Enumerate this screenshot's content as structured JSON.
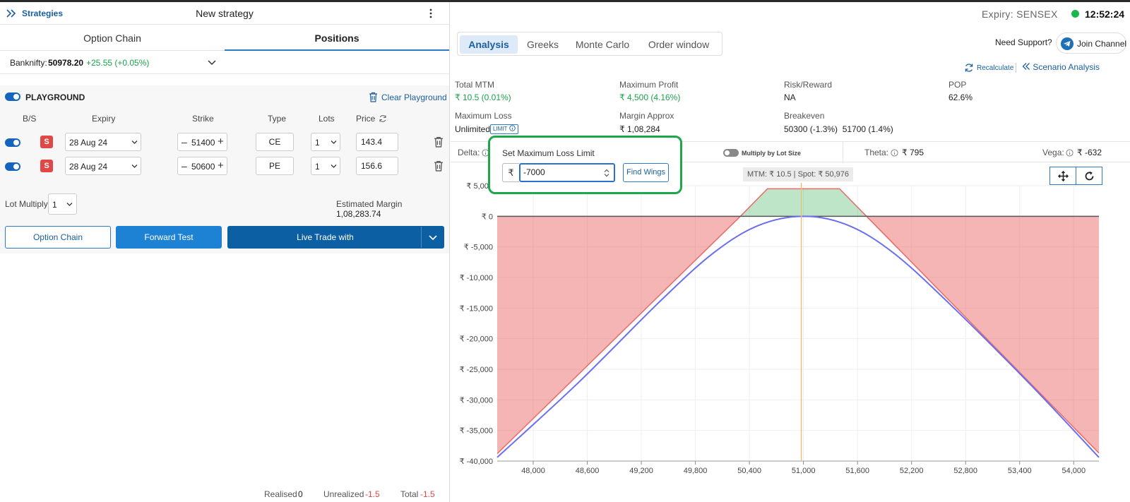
{
  "left": {
    "header": {
      "strategies_label": "Strategies",
      "title": "New strategy"
    },
    "tabs": [
      {
        "label": "Option Chain"
      },
      {
        "label": "Positions"
      }
    ],
    "banknifty": {
      "label": "Banknifty:",
      "value": "50978.20",
      "change": "+25.55 (+0.05%)"
    },
    "playground": {
      "label": "PLAYGROUND",
      "clear_label": "Clear Playground",
      "columns": [
        "B/S",
        "Expiry",
        "Strike",
        "Type",
        "Lots",
        "Price"
      ],
      "rows": [
        {
          "side": "S",
          "expiry": "28 Aug 24",
          "strike": "51400",
          "type": "CE",
          "lots": "1",
          "price": "143.4"
        },
        {
          "side": "S",
          "expiry": "28 Aug 24",
          "strike": "50600",
          "type": "PE",
          "lots": "1",
          "price": "156.6"
        }
      ],
      "lot_multiply_label": "Lot Multiply",
      "lot_multiply_value": "1",
      "estimated_margin_label": "Estimated Margin",
      "estimated_margin_value": "1,08,283.74"
    },
    "buttons": {
      "option_chain": "Option Chain",
      "forward_test": "Forward Test",
      "live_trade": "Live Trade with"
    },
    "footer": {
      "realised_label": "Realised",
      "realised_value": "0",
      "unrealized_label": "Unrealized",
      "unrealized_value": "-1.5",
      "total_label": "Total",
      "total_value": "-1.5"
    }
  },
  "right": {
    "expiry_label": "Expiry:",
    "expiry_value": "SENSEX",
    "clock": "12:52:24",
    "tabs": [
      {
        "label": "Analysis"
      },
      {
        "label": "Greeks"
      },
      {
        "label": "Monte Carlo"
      },
      {
        "label": "Order window"
      }
    ],
    "support_label": "Need Support?",
    "join_label": "Join Channel",
    "recalculate_label": "Recalculate",
    "scenario_label": "Scenario Analysis",
    "stats": {
      "total_mtm_label": "Total MTM",
      "total_mtm_value": "₹ 10.5 (0.01%)",
      "max_profit_label": "Maximum Profit",
      "max_profit_value": "₹ 4,500 (4.16%)",
      "risk_reward_label": "Risk/Reward",
      "risk_reward_value": "NA",
      "pop_label": "POP",
      "pop_value": "62.6%",
      "max_loss_label": "Maximum Loss",
      "max_loss_value": "Unlimited",
      "limit_label": "LIMIT",
      "margin_label": "Margin Approx",
      "margin_value": "₹ 1,08,284",
      "breakeven_label": "Breakeven",
      "breakeven_value": "50300 (-1.3%)  51700 (1.4%)"
    },
    "greeks": {
      "delta_label": "Delta:",
      "lot_size_label": "Multiply by Lot Size",
      "theta_label": "Theta:",
      "theta_value": "₹ 795",
      "vega_label": "Vega:",
      "vega_value": "₹ -632"
    },
    "popup": {
      "title": "Set Maximum Loss Limit",
      "currency": "₹",
      "value": "-7000",
      "button": "Find Wings"
    },
    "mtm_spot": "MTM: ₹ 10.5  |  Spot: ₹ 50,976",
    "colors": {
      "accent": "#1565c0",
      "profit": "#1aa34a",
      "loss": "#e04848",
      "popup_border": "#1ea64a"
    }
  },
  "chart_data": {
    "type": "area",
    "x_ticks": [
      "48,000",
      "48,600",
      "49,200",
      "49,800",
      "50,400",
      "51,000",
      "51,600",
      "52,200",
      "52,800",
      "53,400",
      "54,000"
    ],
    "y_ticks": [
      "₹ 5,000",
      "₹ 0",
      "₹ -5,000",
      "₹ -10,000",
      "₹ -15,000",
      "₹ -20,000",
      "₹ -25,000",
      "₹ -30,000",
      "₹ -35,000",
      "₹ -40,000"
    ],
    "xlim": [
      47600,
      54280
    ],
    "ylim": [
      -40000,
      5000
    ],
    "spot": 50976,
    "expiry_payoff": [
      [
        47600,
        -38800
      ],
      [
        50300,
        0
      ],
      [
        50600,
        4500
      ],
      [
        51400,
        4500
      ],
      [
        51700,
        0
      ],
      [
        54280,
        -38700
      ]
    ],
    "target_payoff": [
      [
        47600,
        -39400
      ],
      [
        48500,
        -27200
      ],
      [
        49400,
        -14000
      ],
      [
        50000,
        -6000
      ],
      [
        50500,
        -1500
      ],
      [
        51000,
        0
      ],
      [
        51500,
        -1500
      ],
      [
        52000,
        -6000
      ],
      [
        52600,
        -14000
      ],
      [
        53500,
        -27200
      ],
      [
        54280,
        -39400
      ]
    ]
  }
}
